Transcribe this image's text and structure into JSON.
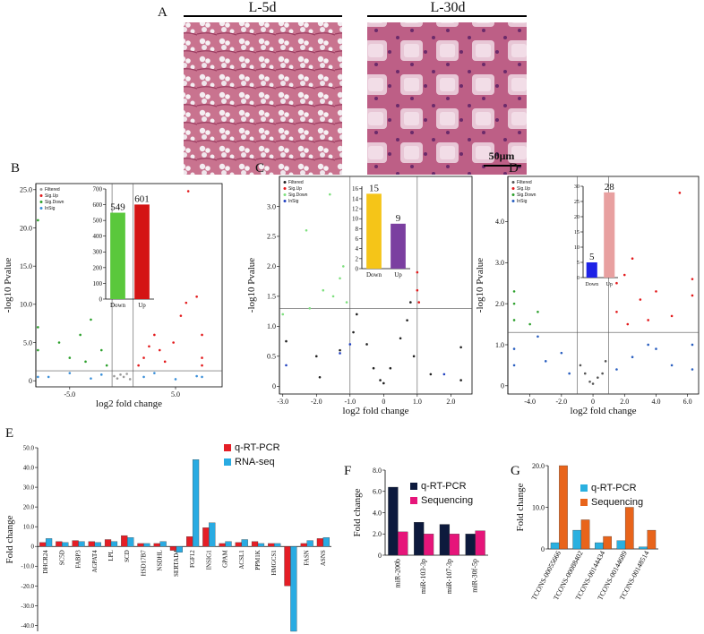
{
  "panel_a": {
    "panel_label": "A",
    "labels": [
      "L-5d",
      "L-30d"
    ],
    "scale_bar": "50μm"
  },
  "chart_data": [
    {
      "type": "scatter",
      "panel_label": "B",
      "xlabel": "log2 fold change",
      "ylabel": "-log10 Pvalue",
      "frame": true,
      "xlim": [
        -8.2,
        9.4
      ],
      "ylim": [
        -0.8,
        25.8
      ],
      "xticks": [
        {
          "value": -5,
          "label": "-5.0"
        },
        {
          "value": 5,
          "label": "5.0"
        }
      ],
      "yticks": [
        0,
        {
          "value": 5,
          "label": "5.0"
        },
        {
          "value": 10,
          "label": "10.0"
        },
        {
          "value": 15,
          "label": "15.0"
        },
        {
          "value": 20,
          "label": "20.0"
        },
        {
          "value": 25,
          "label": "25.0"
        }
      ],
      "threshold_x": [
        -1,
        1
      ],
      "threshold_y": 1.3,
      "legend": "upper left",
      "series": [
        {
          "name": "Filtered",
          "color": "#9a9a9a",
          "x": [
            -0.5,
            -0.2,
            0.1,
            0.4,
            0.7,
            -0.8
          ],
          "y": [
            0.3,
            0.8,
            0.5,
            0.9,
            0.2,
            0.6
          ]
        },
        {
          "name": "Sig.Up",
          "color": "#e31a1c",
          "x": [
            1.5,
            2.0,
            2.5,
            3.0,
            3.5,
            4.0,
            4.8,
            5.5,
            6.0,
            7.0,
            7.5,
            7.5,
            7.5,
            6.2
          ],
          "y": [
            2.0,
            3.0,
            4.5,
            6.0,
            4.0,
            2.5,
            5.0,
            8.5,
            10.2,
            11.0,
            3.0,
            6.0,
            2.0,
            24.8
          ]
        },
        {
          "name": "Sig.Down",
          "color": "#2ca02c",
          "x": [
            -8.0,
            -8.0,
            -8.0,
            -6.0,
            -5.0,
            -4.0,
            -3.0,
            -2.0,
            -3.5,
            -1.5
          ],
          "y": [
            21.0,
            7.0,
            4.0,
            5.0,
            3.0,
            6.0,
            8.0,
            4.0,
            2.5,
            2.0
          ]
        },
        {
          "name": "InSig",
          "color": "#3a8fd9",
          "x": [
            -7.0,
            -5.0,
            -3.0,
            -2.0,
            2.0,
            3.0,
            5.0,
            7.0,
            -8.0,
            7.5
          ],
          "y": [
            0.5,
            1.0,
            0.3,
            0.8,
            0.5,
            1.0,
            0.2,
            0.6,
            0.5,
            0.5
          ]
        }
      ]
    },
    {
      "type": "bar",
      "categories": [
        "Down",
        "Up"
      ],
      "values": [
        549,
        601
      ],
      "colors": [
        "#5ac83c",
        "#d41414"
      ],
      "ylim": [
        0,
        700
      ],
      "yticks": [
        0,
        100,
        200,
        300,
        400,
        500,
        600,
        700
      ]
    },
    {
      "type": "scatter",
      "panel_label": "C",
      "xlabel": "log2 fold change",
      "ylabel": "-log10 Pvalue",
      "frame": true,
      "xlim": [
        -3.1,
        2.63
      ],
      "ylim": [
        -0.13,
        3.5
      ],
      "xticks": [
        {
          "value": -3,
          "label": "-3.0"
        },
        {
          "value": -2,
          "label": "-2.0"
        },
        {
          "value": -1,
          "label": "-1.0"
        },
        0,
        {
          "value": 1,
          "label": "1.0"
        },
        {
          "value": 2,
          "label": "2.0"
        }
      ],
      "yticks": [
        0,
        0.5,
        {
          "value": 1,
          "label": "1.0"
        },
        1.5,
        {
          "value": 2,
          "label": "2.0"
        },
        2.5,
        {
          "value": 3,
          "label": "3.0"
        }
      ],
      "threshold_x": [
        -1,
        1
      ],
      "threshold_y": 1.3,
      "legend": "upper left",
      "series": [
        {
          "name": "Filtered",
          "color": "#222222",
          "x": [
            -0.8,
            -0.5,
            -0.3,
            0,
            0.2,
            0.5,
            0.7,
            0.8,
            -0.9,
            -0.1,
            0.9,
            -2.9,
            -2.0,
            -1.3,
            2.3,
            2.3,
            1.4,
            -1.9
          ],
          "y": [
            1.2,
            0.7,
            0.3,
            0.05,
            0.3,
            0.8,
            1.1,
            1.4,
            0.9,
            0.1,
            0.5,
            0.75,
            0.5,
            0.6,
            0.65,
            0.1,
            0.2,
            0.15
          ]
        },
        {
          "name": "Sig.Up",
          "color": "#e31a1c",
          "x": [
            1.0,
            1.0,
            1.05
          ],
          "y": [
            1.9,
            1.6,
            1.4
          ]
        },
        {
          "name": "Sig.Down",
          "color": "#7fe07f",
          "x": [
            -2.3,
            -1.8,
            -1.3,
            -1.2,
            -1.5,
            -2.2,
            -1.1,
            -3.0,
            -1.6
          ],
          "y": [
            2.6,
            1.6,
            1.8,
            2.0,
            1.5,
            1.3,
            1.4,
            1.2,
            3.2
          ]
        },
        {
          "name": "InSig",
          "color": "#2040c0",
          "x": [
            -1.3,
            -1.0,
            1.8,
            -2.9
          ],
          "y": [
            0.55,
            0.7,
            0.2,
            0.35
          ]
        }
      ]
    },
    {
      "type": "bar",
      "categories": [
        "Down",
        "Up"
      ],
      "values": [
        15,
        9
      ],
      "colors": [
        "#f5c518",
        "#7b3fa0"
      ],
      "ylim": [
        0,
        16.5
      ],
      "yticks": [
        0,
        2,
        4,
        6,
        8,
        10,
        12,
        14,
        16
      ]
    },
    {
      "type": "scatter",
      "panel_label": "D",
      "xlabel": "log2 fold change",
      "ylabel": "-log10 Pvalue",
      "frame": true,
      "xlim": [
        -5.4,
        6.7
      ],
      "ylim": [
        -0.2,
        5.1
      ],
      "xticks": [
        {
          "value": -4,
          "label": "-4.0"
        },
        {
          "value": -2,
          "label": "-2.0"
        },
        0,
        {
          "value": 2,
          "label": "2.0"
        },
        {
          "value": 4,
          "label": "4.0"
        },
        {
          "value": 6,
          "label": "6.0"
        }
      ],
      "yticks": [
        0,
        {
          "value": 1,
          "label": "1.0"
        },
        {
          "value": 2,
          "label": "2.0"
        },
        {
          "value": 3,
          "label": "3.0"
        },
        {
          "value": 4,
          "label": "4.0"
        }
      ],
      "threshold_x": [
        -1,
        1
      ],
      "threshold_y": 1.3,
      "legend": "upper left",
      "series": [
        {
          "name": "Filtered",
          "color": "#555555",
          "x": [
            -0.8,
            -0.5,
            0,
            0.3,
            0.8,
            -0.2,
            0.6
          ],
          "y": [
            0.5,
            0.3,
            0.05,
            0.2,
            0.6,
            0.1,
            0.3
          ]
        },
        {
          "name": "Sig.Up",
          "color": "#e31a1c",
          "x": [
            5.5,
            1.5,
            2.0,
            2.5,
            3.0,
            4.0,
            6.3,
            6.3,
            3.5,
            1.5,
            2.2,
            5.0
          ],
          "y": [
            4.7,
            2.5,
            2.7,
            3.1,
            2.1,
            2.3,
            2.6,
            2.2,
            1.6,
            1.8,
            1.5,
            1.7
          ]
        },
        {
          "name": "Sig.Down",
          "color": "#2ca02c",
          "x": [
            -5.0,
            -5.0,
            -3.5,
            -4.0,
            -5.0
          ],
          "y": [
            2.3,
            1.6,
            1.8,
            1.5,
            2.0
          ]
        },
        {
          "name": "InSig",
          "color": "#2a5fc0",
          "x": [
            -5.0,
            -5.0,
            -3.0,
            -2.0,
            -1.5,
            1.5,
            2.5,
            3.5,
            5.0,
            6.3,
            6.3,
            -3.5,
            4.0
          ],
          "y": [
            0.5,
            0.9,
            0.6,
            0.8,
            0.3,
            0.4,
            0.7,
            1.0,
            0.5,
            0.4,
            1.0,
            1.2,
            0.9
          ]
        }
      ]
    },
    {
      "type": "bar",
      "categories": [
        "Down",
        "Up"
      ],
      "values": [
        5,
        28
      ],
      "colors": [
        "#1e22e6",
        "#e8a0a0"
      ],
      "ylim": [
        0,
        30
      ],
      "yticks": [
        0,
        5,
        10,
        15,
        20,
        25,
        30
      ]
    },
    {
      "type": "bar",
      "panel_label": "E",
      "ylabel": "Fold change",
      "categories": [
        "DHCR24",
        "SC5D",
        "FABP3",
        "AGPAT4",
        "LPL",
        "SCD",
        "HSD17B7",
        "NSDHL",
        "SERTAD4",
        "FGF12",
        "INSIG1",
        "GPAM",
        "ACSL1",
        "PPM1K",
        "HMGCS1",
        "CSN2",
        "FASN",
        "ASNS"
      ],
      "series": [
        {
          "name": "q-RT-PCR",
          "color": "#e41e26",
          "values": [
            2,
            2.5,
            3,
            2.5,
            3.5,
            5.5,
            1.5,
            1.5,
            -2,
            5,
            9.5,
            1.5,
            2,
            2.5,
            1.5,
            -20,
            1.5,
            4
          ]
        },
        {
          "name": "RNA-seq",
          "color": "#29abe2",
          "values": [
            4,
            2,
            2.5,
            2,
            2.5,
            4.5,
            1.5,
            2.5,
            -3,
            44,
            12,
            2.5,
            3.5,
            1.5,
            1.5,
            -43,
            3,
            4.5
          ]
        }
      ],
      "ylim": [
        -43,
        50
      ],
      "yticks": [
        {
          "value": -40,
          "label": "-40.0"
        },
        {
          "value": -30,
          "label": "-30.0"
        },
        {
          "value": -20,
          "label": "-20.0"
        },
        {
          "value": -10,
          "label": "-10.0"
        },
        0,
        {
          "value": 10,
          "label": "10.0"
        },
        {
          "value": 20,
          "label": "20.0"
        },
        {
          "value": 30,
          "label": "30.0"
        },
        {
          "value": 40,
          "label": "40.0"
        },
        {
          "value": 50,
          "label": "50.0"
        }
      ]
    },
    {
      "type": "bar",
      "panel_label": "F",
      "ylabel": "Fold change",
      "categories": [
        "miR-200b",
        "miR-103-3p",
        "miR-107-3p",
        "miR-30f-5p"
      ],
      "series": [
        {
          "name": "q-RT-PCR",
          "color": "#0d1a3d",
          "values": [
            6.4,
            3.1,
            2.9,
            2.0
          ]
        },
        {
          "name": "Sequencing",
          "color": "#e6157a",
          "values": [
            2.2,
            2.0,
            2.0,
            2.3
          ]
        }
      ],
      "ylim": [
        0,
        8
      ],
      "yticks": [
        0,
        {
          "value": 2,
          "label": "2.0"
        },
        {
          "value": 4,
          "label": "4.0"
        },
        {
          "value": 6,
          "label": "6.0"
        },
        {
          "value": 8,
          "label": "8.0"
        }
      ]
    },
    {
      "type": "bar",
      "panel_label": "G",
      "ylabel": "Fold change",
      "categories": [
        "TCONS-00055666",
        "TCONS-00088402",
        "TCONS-00144434",
        "TCONS-00144689",
        "TCONS-00148514"
      ],
      "series": [
        {
          "name": "q-RT-PCR",
          "color": "#2ab0e0",
          "values": [
            1.5,
            4.5,
            1.5,
            2,
            0.5
          ]
        },
        {
          "name": "Sequencing",
          "color": "#e8641b",
          "values": [
            20,
            7,
            3,
            10,
            4.5
          ]
        }
      ],
      "ylim": [
        0,
        20
      ],
      "yticks": [
        0,
        {
          "value": 10,
          "label": "10.0"
        },
        {
          "value": 20,
          "label": "20.0"
        }
      ]
    }
  ]
}
